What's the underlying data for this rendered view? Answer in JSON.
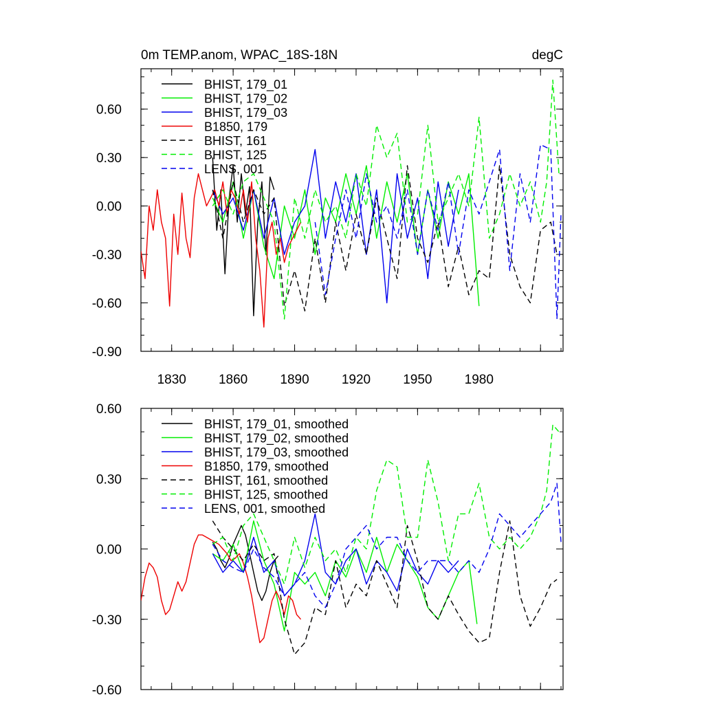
{
  "chart_data": [
    {
      "type": "line",
      "title": "0m TEMP.anom, WPAC_18S-18N",
      "units": "degC",
      "xlim": [
        1815,
        2021
      ],
      "ylim": [
        -0.9,
        0.85
      ],
      "yticks": [
        "-0.90",
        "-0.60",
        "-0.30",
        "0.00",
        "0.30",
        "0.60"
      ],
      "xticks": [
        "1830",
        "1860",
        "1890",
        "1920",
        "1950",
        "1980"
      ],
      "grid": false,
      "legend_position": "top-left",
      "series": [
        {
          "name": "BHIST, 179_01",
          "color": "#000000",
          "dash": "solid",
          "x": [
            1850,
            1852,
            1854,
            1856,
            1858,
            1860,
            1862,
            1864,
            1866,
            1868,
            1870,
            1872,
            1874,
            1876,
            1878,
            1880
          ],
          "y": [
            0.3,
            -0.15,
            0.1,
            -0.42,
            0.05,
            0.25,
            -0.1,
            0.2,
            -0.05,
            0.12,
            -0.68,
            -0.1,
            0.15,
            -0.3,
            0.18,
            0.1
          ]
        },
        {
          "name": "BHIST, 179_02",
          "color": "#00ee00",
          "dash": "solid",
          "x": [
            1850,
            1855,
            1860,
            1865,
            1870,
            1875,
            1880,
            1885,
            1890,
            1895,
            1900,
            1905,
            1910,
            1915,
            1920,
            1925,
            1930,
            1935,
            1940,
            1945,
            1950,
            1955,
            1960,
            1965,
            1970,
            1975,
            1980
          ],
          "y": [
            0.05,
            -0.1,
            0.15,
            -0.2,
            0.1,
            -0.25,
            -0.45,
            0.0,
            -0.2,
            0.1,
            -0.3,
            0.05,
            -0.1,
            0.2,
            -0.05,
            0.25,
            -0.2,
            0.15,
            -0.1,
            0.2,
            -0.3,
            0.1,
            -0.2,
            0.15,
            -0.05,
            0.2,
            -0.62
          ]
        },
        {
          "name": "BHIST, 179_03",
          "color": "#0000ee",
          "dash": "solid",
          "x": [
            1850,
            1855,
            1860,
            1865,
            1870,
            1875,
            1880,
            1885,
            1890,
            1895,
            1900,
            1905,
            1910,
            1915,
            1920,
            1925,
            1930,
            1935,
            1940,
            1945,
            1950,
            1955,
            1960,
            1965,
            1970
          ],
          "y": [
            0.1,
            -0.05,
            0.05,
            -0.15,
            0.1,
            -0.2,
            0.05,
            -0.3,
            -0.1,
            0.0,
            0.35,
            -0.2,
            0.15,
            -0.1,
            0.2,
            -0.3,
            0.1,
            -0.6,
            0.2,
            -0.2,
            0.05,
            -0.45,
            0.15,
            -0.25,
            0.1
          ]
        },
        {
          "name": "B1850, 179",
          "color": "#ee0000",
          "dash": "solid",
          "x": [
            1815,
            1817,
            1819,
            1821,
            1823,
            1825,
            1827,
            1829,
            1831,
            1833,
            1835,
            1837,
            1839,
            1841,
            1843,
            1845,
            1847,
            1849,
            1851,
            1853,
            1855,
            1857,
            1859,
            1861,
            1863,
            1865,
            1867,
            1869,
            1871,
            1873,
            1875,
            1877,
            1879,
            1881,
            1883,
            1885,
            1887,
            1889,
            1891,
            1893
          ],
          "y": [
            -0.28,
            -0.45,
            0.0,
            -0.15,
            0.1,
            -0.1,
            -0.2,
            -0.62,
            -0.05,
            -0.3,
            0.08,
            -0.2,
            -0.32,
            0.05,
            0.2,
            0.1,
            0.0,
            0.05,
            0.1,
            0.0,
            0.15,
            -0.05,
            0.1,
            0.05,
            -0.05,
            0.1,
            -0.1,
            0.15,
            -0.2,
            -0.4,
            -0.75,
            -0.2,
            -0.1,
            -0.3,
            -0.2,
            -0.35,
            -0.25,
            -0.2,
            -0.15,
            -0.1
          ]
        },
        {
          "name": "BHIST, 161",
          "color": "#000000",
          "dash": "dashed",
          "x": [
            1850,
            1855,
            1860,
            1865,
            1870,
            1875,
            1880,
            1885,
            1890,
            1895,
            1900,
            1905,
            1910,
            1915,
            1920,
            1925,
            1930,
            1935,
            1940,
            1945,
            1950,
            1955,
            1960,
            1965,
            1970,
            1975,
            1980,
            1985,
            1990,
            1995,
            2000,
            2005,
            2010,
            2015,
            2018
          ],
          "y": [
            0.1,
            -0.2,
            0.15,
            -0.1,
            0.1,
            -0.05,
            0.05,
            -0.62,
            -0.4,
            -0.65,
            -0.2,
            -0.6,
            -0.1,
            -0.4,
            -0.05,
            -0.3,
            0.05,
            -0.2,
            -0.45,
            0.25,
            -0.2,
            -0.35,
            -0.1,
            -0.5,
            -0.25,
            -0.55,
            -0.4,
            -0.45,
            0.25,
            -0.3,
            -0.5,
            -0.6,
            -0.15,
            -0.1,
            -0.3
          ]
        },
        {
          "name": "BHIST, 125",
          "color": "#00ee00",
          "dash": "dashed",
          "x": [
            1850,
            1855,
            1860,
            1865,
            1870,
            1875,
            1880,
            1885,
            1890,
            1895,
            1900,
            1905,
            1910,
            1915,
            1920,
            1925,
            1930,
            1935,
            1940,
            1945,
            1950,
            1955,
            1960,
            1965,
            1970,
            1975,
            1980,
            1985,
            1990,
            1995,
            2000,
            2005,
            2010,
            2013,
            2016,
            2019
          ],
          "y": [
            0.0,
            0.1,
            -0.05,
            0.15,
            0.2,
            0.05,
            -0.1,
            -0.7,
            0.05,
            -0.2,
            0.1,
            -0.1,
            0.0,
            -0.2,
            0.2,
            0.0,
            0.5,
            0.3,
            0.45,
            -0.1,
            -0.05,
            0.5,
            -0.1,
            0.05,
            0.2,
            0.0,
            0.55,
            -0.2,
            -0.05,
            0.2,
            0.0,
            0.15,
            -0.1,
            0.15,
            0.78,
            0.2
          ]
        },
        {
          "name": "LENS, 001",
          "color": "#0000ee",
          "dash": "dashed",
          "x": [
            1900,
            1905,
            1910,
            1915,
            1920,
            1925,
            1930,
            1935,
            1940,
            1945,
            1950,
            1955,
            1960,
            1965,
            1970,
            1975,
            1980,
            1985,
            1990,
            1995,
            2000,
            2005,
            2010,
            2015,
            2018,
            2020
          ],
          "y": [
            -0.1,
            -0.55,
            -0.2,
            0.1,
            -0.2,
            0.2,
            -0.1,
            0.0,
            -0.2,
            0.1,
            -0.3,
            0.1,
            -0.15,
            0.15,
            -0.3,
            0.1,
            -0.05,
            0.15,
            0.35,
            -0.4,
            0.2,
            -0.1,
            0.38,
            0.35,
            -0.7,
            -0.05
          ]
        }
      ]
    },
    {
      "type": "line",
      "xlim": [
        1815,
        2021
      ],
      "ylim": [
        -0.6,
        0.6
      ],
      "yticks": [
        "-0.60",
        "-0.30",
        "0.00",
        "0.30",
        "0.60"
      ],
      "grid": false,
      "legend_position": "top-left",
      "series": [
        {
          "name": "BHIST, 179_01, smoothed",
          "color": "#000000",
          "dash": "solid",
          "x": [
            1850,
            1852,
            1854,
            1856,
            1858,
            1860,
            1862,
            1864,
            1866,
            1868,
            1870,
            1872,
            1874,
            1876,
            1878,
            1880,
            1882
          ],
          "y": [
            0.03,
            0.0,
            -0.05,
            -0.08,
            -0.04,
            0.02,
            0.06,
            0.1,
            0.06,
            -0.02,
            -0.1,
            -0.18,
            -0.22,
            -0.18,
            -0.1,
            -0.05,
            -0.03
          ]
        },
        {
          "name": "BHIST, 179_02, smoothed",
          "color": "#00ee00",
          "dash": "solid",
          "x": [
            1850,
            1855,
            1860,
            1865,
            1870,
            1875,
            1880,
            1885,
            1890,
            1895,
            1900,
            1905,
            1910,
            1915,
            1920,
            1925,
            1930,
            1935,
            1940,
            1945,
            1950,
            1955,
            1960,
            1965,
            1970,
            1975,
            1979
          ],
          "y": [
            -0.02,
            -0.05,
            0.02,
            -0.1,
            0.12,
            -0.05,
            -0.15,
            -0.35,
            -0.1,
            -0.15,
            -0.1,
            -0.2,
            -0.05,
            -0.12,
            0.0,
            -0.1,
            0.05,
            -0.1,
            0.02,
            -0.05,
            -0.12,
            -0.25,
            -0.3,
            -0.2,
            -0.1,
            -0.05,
            -0.32
          ]
        },
        {
          "name": "BHIST, 179_03, smoothed",
          "color": "#0000ee",
          "dash": "solid",
          "x": [
            1850,
            1855,
            1860,
            1865,
            1870,
            1875,
            1880,
            1885,
            1890,
            1895,
            1900,
            1905,
            1910,
            1915,
            1920,
            1925,
            1930,
            1935,
            1940,
            1945,
            1950,
            1955,
            1960,
            1965,
            1970
          ],
          "y": [
            -0.02,
            -0.1,
            -0.05,
            -0.1,
            0.05,
            -0.1,
            -0.05,
            -0.2,
            -0.15,
            -0.05,
            0.15,
            -0.1,
            -0.15,
            -0.05,
            0.0,
            -0.15,
            -0.05,
            -0.1,
            -0.18,
            0.0,
            -0.1,
            -0.15,
            -0.05,
            -0.1,
            -0.05
          ]
        },
        {
          "name": "B1850, 179, smoothed",
          "color": "#ee0000",
          "dash": "solid",
          "x": [
            1815,
            1817,
            1819,
            1821,
            1823,
            1825,
            1827,
            1829,
            1831,
            1833,
            1835,
            1837,
            1839,
            1841,
            1843,
            1845,
            1847,
            1849,
            1851,
            1853,
            1855,
            1857,
            1859,
            1861,
            1863,
            1865,
            1867,
            1869,
            1871,
            1873,
            1875,
            1877,
            1879,
            1881,
            1883,
            1885,
            1887,
            1889,
            1891,
            1893
          ],
          "y": [
            -0.22,
            -0.12,
            -0.06,
            -0.08,
            -0.12,
            -0.22,
            -0.28,
            -0.26,
            -0.2,
            -0.14,
            -0.18,
            -0.14,
            -0.06,
            0.02,
            0.06,
            0.06,
            0.05,
            0.04,
            0.03,
            0.02,
            0.0,
            -0.02,
            -0.05,
            -0.04,
            -0.02,
            -0.06,
            -0.12,
            -0.2,
            -0.3,
            -0.4,
            -0.38,
            -0.3,
            -0.22,
            -0.18,
            -0.22,
            -0.28,
            -0.2,
            -0.22,
            -0.28,
            -0.3
          ]
        },
        {
          "name": "BHIST, 161, smoothed",
          "color": "#000000",
          "dash": "dashed",
          "x": [
            1850,
            1855,
            1860,
            1865,
            1870,
            1875,
            1880,
            1885,
            1890,
            1895,
            1900,
            1905,
            1910,
            1915,
            1920,
            1925,
            1930,
            1935,
            1940,
            1945,
            1950,
            1955,
            1960,
            1965,
            1970,
            1975,
            1980,
            1985,
            1990,
            1995,
            2000,
            2005,
            2010,
            2015,
            2018
          ],
          "y": [
            0.12,
            0.05,
            0.0,
            -0.05,
            0.02,
            -0.05,
            -0.02,
            -0.3,
            -0.45,
            -0.4,
            -0.25,
            -0.28,
            -0.05,
            -0.25,
            -0.15,
            -0.2,
            -0.05,
            -0.15,
            -0.25,
            0.1,
            -0.05,
            -0.25,
            -0.3,
            -0.2,
            -0.28,
            -0.35,
            -0.4,
            -0.38,
            -0.1,
            0.12,
            -0.2,
            -0.33,
            -0.25,
            -0.15,
            -0.13
          ]
        },
        {
          "name": "BHIST, 125, smoothed",
          "color": "#00ee00",
          "dash": "dashed",
          "x": [
            1850,
            1855,
            1860,
            1865,
            1870,
            1875,
            1880,
            1885,
            1890,
            1895,
            1900,
            1905,
            1910,
            1915,
            1920,
            1925,
            1930,
            1935,
            1940,
            1945,
            1950,
            1955,
            1960,
            1965,
            1970,
            1975,
            1980,
            1985,
            1990,
            1995,
            2000,
            2005,
            2010,
            2013,
            2016,
            2019
          ],
          "y": [
            0.02,
            0.05,
            -0.05,
            0.1,
            0.15,
            0.05,
            -0.05,
            -0.15,
            0.05,
            -0.08,
            0.05,
            -0.05,
            0.0,
            -0.1,
            0.05,
            0.0,
            0.25,
            0.38,
            0.35,
            0.05,
            0.05,
            0.38,
            0.2,
            -0.05,
            0.15,
            0.15,
            0.28,
            0.05,
            0.0,
            0.05,
            0.0,
            0.05,
            0.15,
            0.25,
            0.53,
            0.5
          ]
        },
        {
          "name": "LENS, 001, smoothed",
          "color": "#0000ee",
          "dash": "dashed",
          "x": [
            1850,
            1855,
            1860,
            1865,
            1870,
            1875,
            1880,
            1885,
            1890,
            1895,
            1900,
            1905,
            1910,
            1915,
            1920,
            1925,
            1930,
            1935,
            1940,
            1945,
            1950,
            1955,
            1960,
            1965,
            1970,
            1975,
            1980,
            1985,
            1990,
            1995,
            2000,
            2005,
            2010,
            2015,
            2018,
            2020
          ],
          "y": [
            0.02,
            -0.05,
            -0.08,
            -0.1,
            0.0,
            -0.08,
            -0.12,
            -0.2,
            -0.15,
            -0.1,
            -0.2,
            -0.25,
            -0.15,
            0.0,
            0.05,
            0.1,
            0.0,
            0.05,
            0.05,
            -0.05,
            -0.1,
            -0.05,
            -0.05,
            -0.05,
            -0.1,
            -0.05,
            -0.1,
            0.0,
            0.15,
            0.1,
            0.05,
            0.1,
            0.15,
            0.2,
            0.28,
            0.03
          ]
        }
      ]
    }
  ]
}
